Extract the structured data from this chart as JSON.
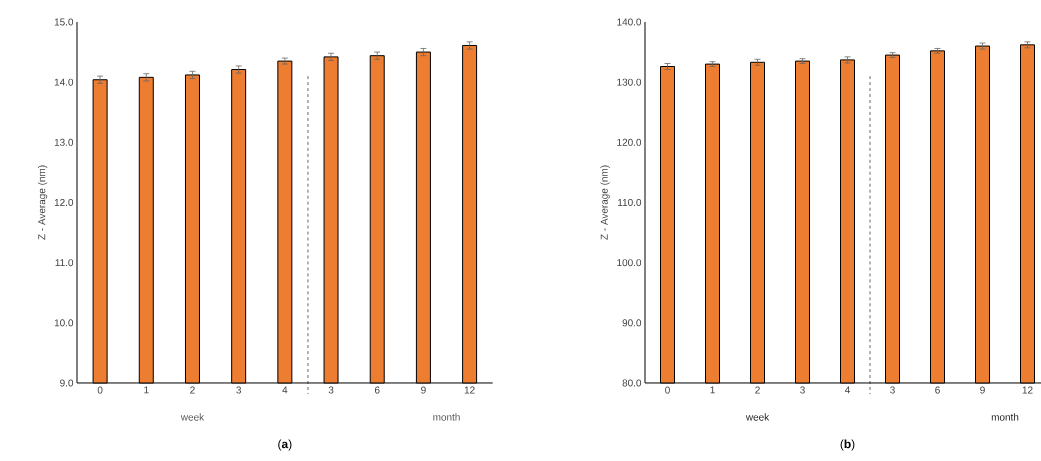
{
  "chart_data": [
    {
      "type": "bar",
      "title": "(**a**)",
      "ylabel": "Z - Average (nm)",
      "categories": [
        "0",
        "1",
        "2",
        "3",
        "4",
        "3",
        "6",
        "9",
        "12"
      ],
      "values": [
        14.04,
        14.08,
        14.12,
        14.21,
        14.35,
        14.42,
        14.44,
        14.5,
        14.61
      ],
      "errors": [
        0.06,
        0.06,
        0.06,
        0.06,
        0.05,
        0.06,
        0.06,
        0.06,
        0.06
      ],
      "color": "#ed7d31",
      "ylim": [
        9,
        15
      ],
      "yticks": [
        {
          "value": 9,
          "label": "9.0"
        },
        {
          "value": 10,
          "label": "10.0"
        },
        {
          "value": 11,
          "label": "11.0"
        },
        {
          "value": 12,
          "label": "12.0"
        },
        {
          "value": 13,
          "label": "13.0"
        },
        {
          "value": 14,
          "label": "14.0"
        },
        {
          "value": 15,
          "label": "15.0"
        }
      ],
      "annotations": [
        "week",
        "month"
      ],
      "grid": false
    },
    {
      "type": "bar",
      "title": "(**b**)",
      "ylabel": "Z - Average (nm)",
      "categories": [
        "0",
        "1",
        "2",
        "3",
        "4",
        "3",
        "6",
        "9",
        "12"
      ],
      "values": [
        132.6,
        133.0,
        133.3,
        133.5,
        133.7,
        134.5,
        135.2,
        136.0,
        136.2
      ],
      "errors": [
        0.5,
        0.4,
        0.5,
        0.4,
        0.5,
        0.4,
        0.4,
        0.5,
        0.5
      ],
      "color": "#ed7d31",
      "ylim": [
        80,
        140
      ],
      "yticks": [
        {
          "value": 80,
          "label": "80.0"
        },
        {
          "value": 90,
          "label": "90.0"
        },
        {
          "value": 100,
          "label": "100.0"
        },
        {
          "value": 110,
          "label": "110.0"
        },
        {
          "value": 120,
          "label": "120.0"
        },
        {
          "value": 130,
          "label": "130.0"
        },
        {
          "value": 140,
          "label": "140.0"
        }
      ],
      "annotations": [
        "week",
        "month"
      ],
      "grid": false
    }
  ]
}
